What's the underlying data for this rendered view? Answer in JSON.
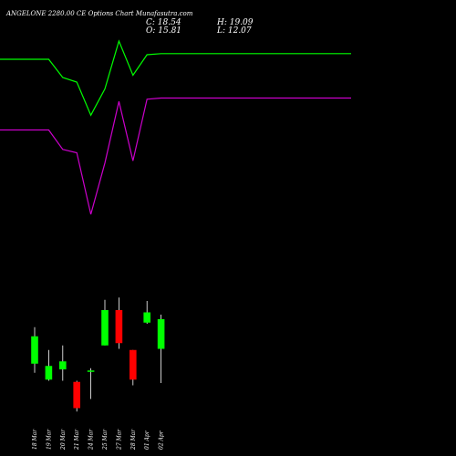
{
  "header": {
    "title": "ANGELONE 2280.00  CE Options Chart Munafasutra.com",
    "close": "C: 18.54",
    "high": "H: 19.09",
    "open": "O: 15.81",
    "low": "L: 12.07"
  },
  "chart_data": {
    "type": "candlestick",
    "categories": [
      "18 Mar",
      "19 Mar",
      "20 Mar",
      "21 Mar",
      "24 Mar",
      "25 Mar",
      "27 Mar",
      "28 Mar",
      "01 Apr",
      "02 Apr"
    ],
    "candles": [
      {
        "open": 10.1,
        "high": 13.3,
        "low": 9.3,
        "close": 12.5
      },
      {
        "open": 8.7,
        "high": 11.3,
        "low": 8.6,
        "close": 9.9
      },
      {
        "open": 9.6,
        "high": 11.7,
        "low": 8.6,
        "close": 10.3
      },
      {
        "open": 8.5,
        "high": 8.6,
        "low": 5.9,
        "close": 6.2
      },
      {
        "open": 9.4,
        "high": 9.7,
        "low": 7.0,
        "close": 9.5
      },
      {
        "open": 11.7,
        "high": 15.7,
        "low": 11.7,
        "close": 14.8
      },
      {
        "open": 14.8,
        "high": 15.9,
        "low": 11.4,
        "close": 11.9
      },
      {
        "open": 11.3,
        "high": 11.3,
        "low": 8.2,
        "close": 8.7
      },
      {
        "open": 13.7,
        "high": 15.6,
        "low": 13.6,
        "close": 14.6
      },
      {
        "open": 11.4,
        "high": 14.4,
        "low": 8.4,
        "close": 14.0
      }
    ],
    "upper_line": [
      36.8,
      36.8,
      35.2,
      34.8,
      31.9,
      34.2,
      38.4,
      35.4,
      37.2,
      37.3
    ],
    "lower_line": [
      30.6,
      30.6,
      28.9,
      28.6,
      23.2,
      27.7,
      33.1,
      27.9,
      33.3,
      33.4
    ],
    "ylim": [
      2,
      42
    ],
    "colors": {
      "background": "#000000",
      "upper_line": "#00ff00",
      "lower_line": "#cc00cc",
      "bull": "#00ff00",
      "bear": "#ff0000",
      "wick": "#ffffff",
      "text": "#ffffff"
    }
  }
}
